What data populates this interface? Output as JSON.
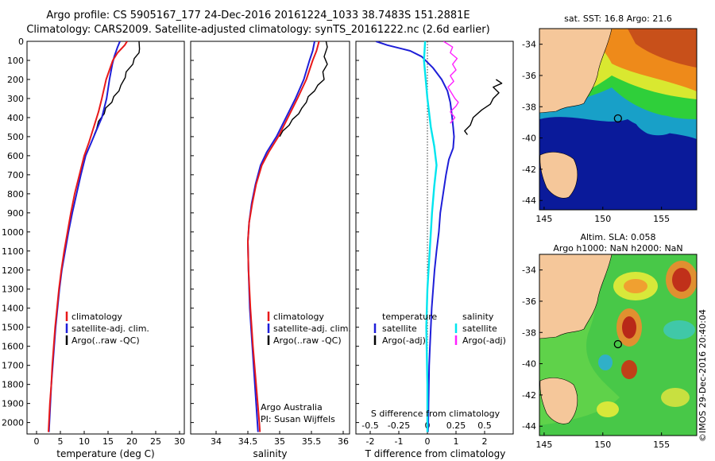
{
  "header": {
    "title_line1": "Argo profile: CS 5905167_177 24-Dec-2016 20161224_1033 38.7483S 151.2881E",
    "title_line2": "Climatology: CARS2009. Satellite-adjusted climatology: synTS_20161222.nc (2.6d earlier)"
  },
  "maps": {
    "sst_title": "sat. SST: 16.8 Argo: 21.6",
    "sla_title_line1": "Altim. SLA: 0.058",
    "sla_title_line2": "Argo h1000: NaN h2000: NaN",
    "credit": "©IMOS 29-Dec-2016 20:40:04",
    "lat_ticks": [
      "-34",
      "-36",
      "-38",
      "-40",
      "-42",
      "-44"
    ],
    "lon_ticks": [
      "145",
      "150",
      "155"
    ],
    "argo_marker": {
      "lon": 151.29,
      "lat": -38.75
    }
  },
  "chart_data": [
    {
      "type": "line",
      "panel": "temperature",
      "xlabel": "temperature (deg C)",
      "ylabel": "",
      "xlim": [
        -2,
        31
      ],
      "ylim": [
        2060,
        0
      ],
      "xticks": [
        "0",
        "5",
        "10",
        "15",
        "20",
        "25",
        "30"
      ],
      "yticks": [
        "0",
        "100",
        "200",
        "300",
        "400",
        "500",
        "600",
        "700",
        "800",
        "900",
        "1000",
        "1100",
        "1200",
        "1300",
        "1400",
        "1500",
        "1600",
        "1700",
        "1800",
        "1900",
        "2000"
      ],
      "legend": [
        "climatology",
        "satellite-adj. clim.",
        "Argo(..raw -QC)"
      ],
      "colors": {
        "climatology": "#e8191a",
        "satellite": "#1e1ed8",
        "argo": "#000000"
      },
      "series": [
        {
          "name": "climatology",
          "points": [
            [
              19,
              0
            ],
            [
              18.5,
              20
            ],
            [
              17,
              60
            ],
            [
              16,
              100
            ],
            [
              15.3,
              150
            ],
            [
              14.6,
              200
            ],
            [
              13.7,
              300
            ],
            [
              13,
              370
            ],
            [
              12,
              450
            ],
            [
              11,
              530
            ],
            [
              10,
              600
            ],
            [
              9,
              700
            ],
            [
              8,
              800
            ],
            [
              7.2,
              900
            ],
            [
              6.5,
              1000
            ],
            [
              5.8,
              1100
            ],
            [
              5.2,
              1200
            ],
            [
              4.7,
              1300
            ],
            [
              4.3,
              1400
            ],
            [
              3.9,
              1500
            ],
            [
              3.6,
              1600
            ],
            [
              3.3,
              1700
            ],
            [
              3.1,
              1800
            ],
            [
              2.8,
              1900
            ],
            [
              2.6,
              2000
            ],
            [
              2.5,
              2050
            ]
          ]
        },
        {
          "name": "satellite-adj. clim.",
          "points": [
            [
              17.5,
              0
            ],
            [
              17,
              30
            ],
            [
              16.3,
              80
            ],
            [
              15.9,
              120
            ],
            [
              15.3,
              200
            ],
            [
              14.7,
              300
            ],
            [
              13.7,
              400
            ],
            [
              12.5,
              470
            ],
            [
              11.5,
              530
            ],
            [
              10.3,
              600
            ],
            [
              9.3,
              700
            ],
            [
              8.4,
              800
            ],
            [
              7.5,
              900
            ],
            [
              6.7,
              1000
            ],
            [
              6,
              1100
            ],
            [
              5.3,
              1200
            ],
            [
              4.8,
              1300
            ],
            [
              4.4,
              1400
            ],
            [
              4,
              1500
            ],
            [
              3.7,
              1600
            ],
            [
              3.4,
              1700
            ],
            [
              3.1,
              1800
            ],
            [
              2.9,
              1900
            ],
            [
              2.7,
              2000
            ],
            [
              2.6,
              2050
            ]
          ]
        },
        {
          "name": "Argo(..raw -QC)",
          "points": [
            [
              21.5,
              0
            ],
            [
              21.6,
              40
            ],
            [
              21.5,
              60
            ],
            [
              20.5,
              90
            ],
            [
              20.2,
              120
            ],
            [
              18.8,
              160
            ],
            [
              18.6,
              190
            ],
            [
              17.7,
              230
            ],
            [
              17.3,
              260
            ],
            [
              16.2,
              290
            ],
            [
              15.8,
              320
            ],
            [
              14.5,
              350
            ],
            [
              14.2,
              380
            ],
            [
              13,
              420
            ],
            [
              12.6,
              460
            ],
            [
              12.1,
              490
            ]
          ]
        }
      ]
    },
    {
      "type": "line",
      "panel": "salinity",
      "xlabel": "salinity",
      "ylabel": "",
      "xlim": [
        33.6,
        36.1
      ],
      "ylim": [
        2060,
        0
      ],
      "xticks": [
        "34",
        "34.5",
        "35",
        "35.5",
        "36"
      ],
      "legend": [
        "climatology",
        "satellite-adj. clim.",
        "Argo(..raw -QC)"
      ],
      "annotation_line1": "Argo Australia",
      "annotation_line2": "PI: Susan Wijffels",
      "series": [
        {
          "name": "climatology",
          "points": [
            [
              35.62,
              0
            ],
            [
              35.58,
              50
            ],
            [
              35.52,
              100
            ],
            [
              35.42,
              200
            ],
            [
              35.28,
              300
            ],
            [
              35.13,
              400
            ],
            [
              34.98,
              500
            ],
            [
              34.83,
              580
            ],
            [
              34.72,
              650
            ],
            [
              34.63,
              750
            ],
            [
              34.57,
              850
            ],
            [
              34.52,
              950
            ],
            [
              34.5,
              1050
            ],
            [
              34.51,
              1200
            ],
            [
              34.54,
              1400
            ],
            [
              34.58,
              1600
            ],
            [
              34.63,
              1800
            ],
            [
              34.68,
              2000
            ],
            [
              34.69,
              2050
            ]
          ]
        },
        {
          "name": "satellite-adj. clim.",
          "points": [
            [
              35.55,
              0
            ],
            [
              35.52,
              50
            ],
            [
              35.47,
              100
            ],
            [
              35.38,
              200
            ],
            [
              35.25,
              300
            ],
            [
              35.1,
              400
            ],
            [
              34.95,
              500
            ],
            [
              34.8,
              580
            ],
            [
              34.7,
              650
            ],
            [
              34.62,
              750
            ],
            [
              34.56,
              850
            ],
            [
              34.52,
              950
            ],
            [
              34.5,
              1050
            ],
            [
              34.51,
              1200
            ],
            [
              34.53,
              1400
            ],
            [
              34.57,
              1600
            ],
            [
              34.61,
              1800
            ],
            [
              34.65,
              2000
            ],
            [
              34.66,
              2050
            ]
          ]
        },
        {
          "name": "Argo(..raw -QC)",
          "points": [
            [
              35.73,
              0
            ],
            [
              35.75,
              30
            ],
            [
              35.7,
              80
            ],
            [
              35.75,
              120
            ],
            [
              35.68,
              160
            ],
            [
              35.7,
              200
            ],
            [
              35.6,
              230
            ],
            [
              35.55,
              260
            ],
            [
              35.45,
              290
            ],
            [
              35.42,
              320
            ],
            [
              35.35,
              350
            ],
            [
              35.3,
              380
            ],
            [
              35.2,
              410
            ],
            [
              35.15,
              440
            ],
            [
              35.05,
              470
            ],
            [
              35.0,
              500
            ]
          ]
        }
      ]
    },
    {
      "type": "line",
      "panel": "difference",
      "xlabel": "T difference from climatology",
      "xlabel_top": "S difference from climatology",
      "xlim_T": [
        -2.5,
        3
      ],
      "xlim_S": [
        -0.625,
        0.75
      ],
      "ylim": [
        2060,
        0
      ],
      "xticks_T": [
        "-2",
        "-1",
        "0",
        "1",
        "2"
      ],
      "xticks_S": [
        "-0.5",
        "-0.25",
        "0",
        "0.25",
        "0.5"
      ],
      "legend_temperature_title": "temperature",
      "legend_salinity_title": "salinity",
      "legend": [
        "satellite",
        "Argo(-adj)",
        "satellite",
        "Argo(-adj)"
      ],
      "colors": {
        "t_sat": "#1e1ed8",
        "t_argo": "#000000",
        "s_sat": "#00e5ee",
        "s_argo": "#ff20ff"
      },
      "series": [
        {
          "name": "temperature satellite",
          "points": [
            [
              -1.8,
              0
            ],
            [
              -1.4,
              20
            ],
            [
              -0.6,
              50
            ],
            [
              -0.2,
              80
            ],
            [
              0.2,
              140
            ],
            [
              0.5,
              200
            ],
            [
              0.7,
              260
            ],
            [
              0.8,
              320
            ],
            [
              0.85,
              380
            ],
            [
              0.9,
              450
            ],
            [
              0.93,
              500
            ],
            [
              0.9,
              560
            ],
            [
              0.75,
              620
            ],
            [
              0.65,
              700
            ],
            [
              0.55,
              800
            ],
            [
              0.45,
              900
            ],
            [
              0.4,
              1000
            ],
            [
              0.32,
              1100
            ],
            [
              0.25,
              1200
            ],
            [
              0.2,
              1300
            ],
            [
              0.15,
              1400
            ],
            [
              0.12,
              1500
            ],
            [
              0.09,
              1600
            ],
            [
              0.06,
              1700
            ],
            [
              0.05,
              1800
            ],
            [
              0.04,
              1900
            ],
            [
              0.03,
              2000
            ],
            [
              0.02,
              2050
            ]
          ]
        },
        {
          "name": "temperature Argo(-adj)",
          "points": [
            [
              2.4,
              200
            ],
            [
              2.6,
              220
            ],
            [
              2.3,
              240
            ],
            [
              2.5,
              270
            ],
            [
              2.3,
              300
            ],
            [
              2.2,
              330
            ],
            [
              1.9,
              360
            ],
            [
              1.6,
              400
            ],
            [
              1.5,
              440
            ],
            [
              1.3,
              470
            ],
            [
              1.4,
              490
            ]
          ]
        },
        {
          "name": "salinity satellite",
          "points": [
            [
              -0.02,
              0
            ],
            [
              -0.03,
              100
            ],
            [
              0.0,
              300
            ],
            [
              0.03,
              450
            ],
            [
              0.06,
              550
            ],
            [
              0.08,
              650
            ],
            [
              0.06,
              760
            ],
            [
              0.04,
              900
            ],
            [
              0.02,
              1100
            ],
            [
              0.0,
              1300
            ],
            [
              -0.01,
              1500
            ],
            [
              0.0,
              1800
            ],
            [
              0.0,
              2050
            ]
          ]
        },
        {
          "name": "salinity Argo(-adj)",
          "points": [
            [
              0.14,
              0
            ],
            [
              0.22,
              30
            ],
            [
              0.2,
              60
            ],
            [
              0.26,
              90
            ],
            [
              0.22,
              120
            ],
            [
              0.25,
              150
            ],
            [
              0.2,
              180
            ],
            [
              0.23,
              210
            ],
            [
              0.18,
              240
            ],
            [
              0.21,
              270
            ],
            [
              0.24,
              300
            ],
            [
              0.27,
              320
            ],
            [
              0.25,
              340
            ],
            [
              0.2,
              370
            ],
            [
              0.24,
              400
            ],
            [
              0.2,
              430
            ]
          ]
        }
      ]
    }
  ]
}
